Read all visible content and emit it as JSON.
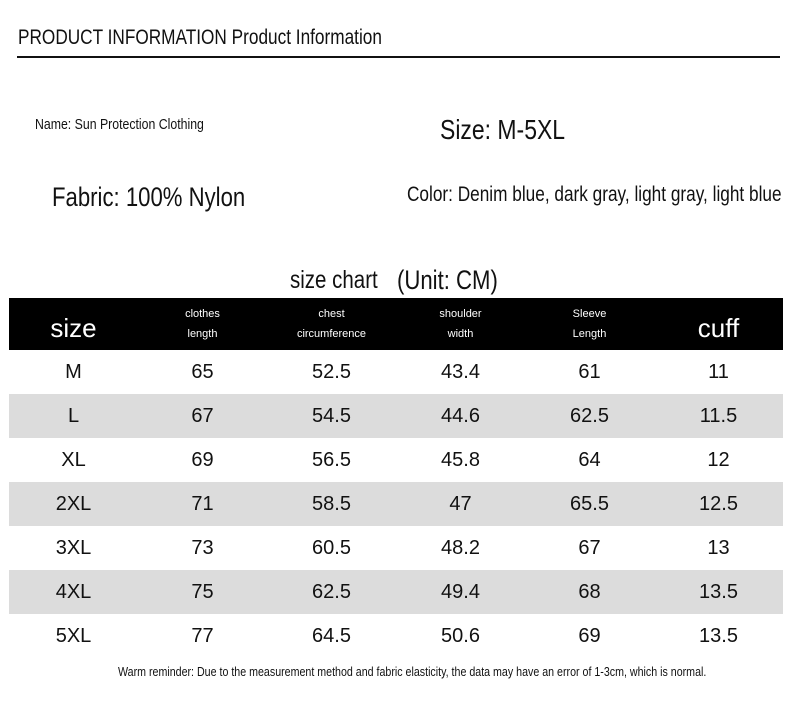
{
  "header": {
    "title": "PRODUCT INFORMATION Product Information"
  },
  "info": {
    "name": "Name: Sun Protection Clothing",
    "size": "Size: M-5XL",
    "fabric": "Fabric: 100% Nylon",
    "color": "Color: Denim blue, dark gray, light gray, light blue"
  },
  "table": {
    "title": "size chart",
    "unit": "(Unit: CM)",
    "columns": [
      [
        "size"
      ],
      [
        "clothes",
        "length"
      ],
      [
        "chest",
        "circumference"
      ],
      [
        "shoulder",
        "width"
      ],
      [
        "Sleeve",
        "Length"
      ],
      [
        "cuff"
      ]
    ],
    "rows": [
      [
        "M",
        65,
        52.5,
        43.4,
        61,
        11
      ],
      [
        "L",
        67,
        54.5,
        44.6,
        62.5,
        11.5
      ],
      [
        "XL",
        69,
        56.5,
        45.8,
        64,
        12
      ],
      [
        "2XL",
        71,
        58.5,
        47,
        65.5,
        12.5
      ],
      [
        "3XL",
        73,
        60.5,
        48.2,
        67,
        13
      ],
      [
        "4XL",
        75,
        62.5,
        49.4,
        68,
        13.5
      ],
      [
        "5XL",
        77,
        64.5,
        50.6,
        69,
        13.5
      ]
    ]
  },
  "footer": {
    "note": "Warm reminder: Due to the measurement method and fabric elasticity, the data may have an error of 1-3cm, which is normal."
  }
}
